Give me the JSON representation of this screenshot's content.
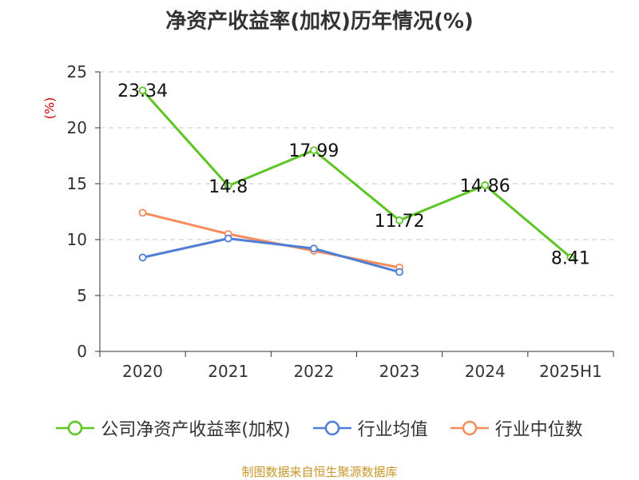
{
  "chart_data": {
    "type": "line",
    "title": "净资产收益率(加权)历年情况(%)",
    "ylabel": "(%)",
    "categories": [
      "2020",
      "2021",
      "2022",
      "2023",
      "2024",
      "2025H1"
    ],
    "ylim": [
      0,
      25
    ],
    "yticks": [
      0,
      5,
      10,
      15,
      20,
      25
    ],
    "grid": true,
    "legend_position": "bottom",
    "series": [
      {
        "name": "公司净资产收益率(加权)",
        "color": "#5cc524",
        "values": [
          23.34,
          14.8,
          17.99,
          11.72,
          14.86,
          8.41
        ],
        "labels": [
          "23.34",
          "14.8",
          "17.99",
          "11.72",
          "14.86",
          "8.41"
        ]
      },
      {
        "name": "行业均值",
        "color": "#4f7ed6",
        "values": [
          8.4,
          10.1,
          9.2,
          7.1,
          null,
          null
        ]
      },
      {
        "name": "行业中位数",
        "color": "#f48c5c",
        "values": [
          12.4,
          10.5,
          9.0,
          7.5,
          null,
          null
        ]
      }
    ]
  },
  "source_note": "制图数据来自恒生聚源数据库"
}
